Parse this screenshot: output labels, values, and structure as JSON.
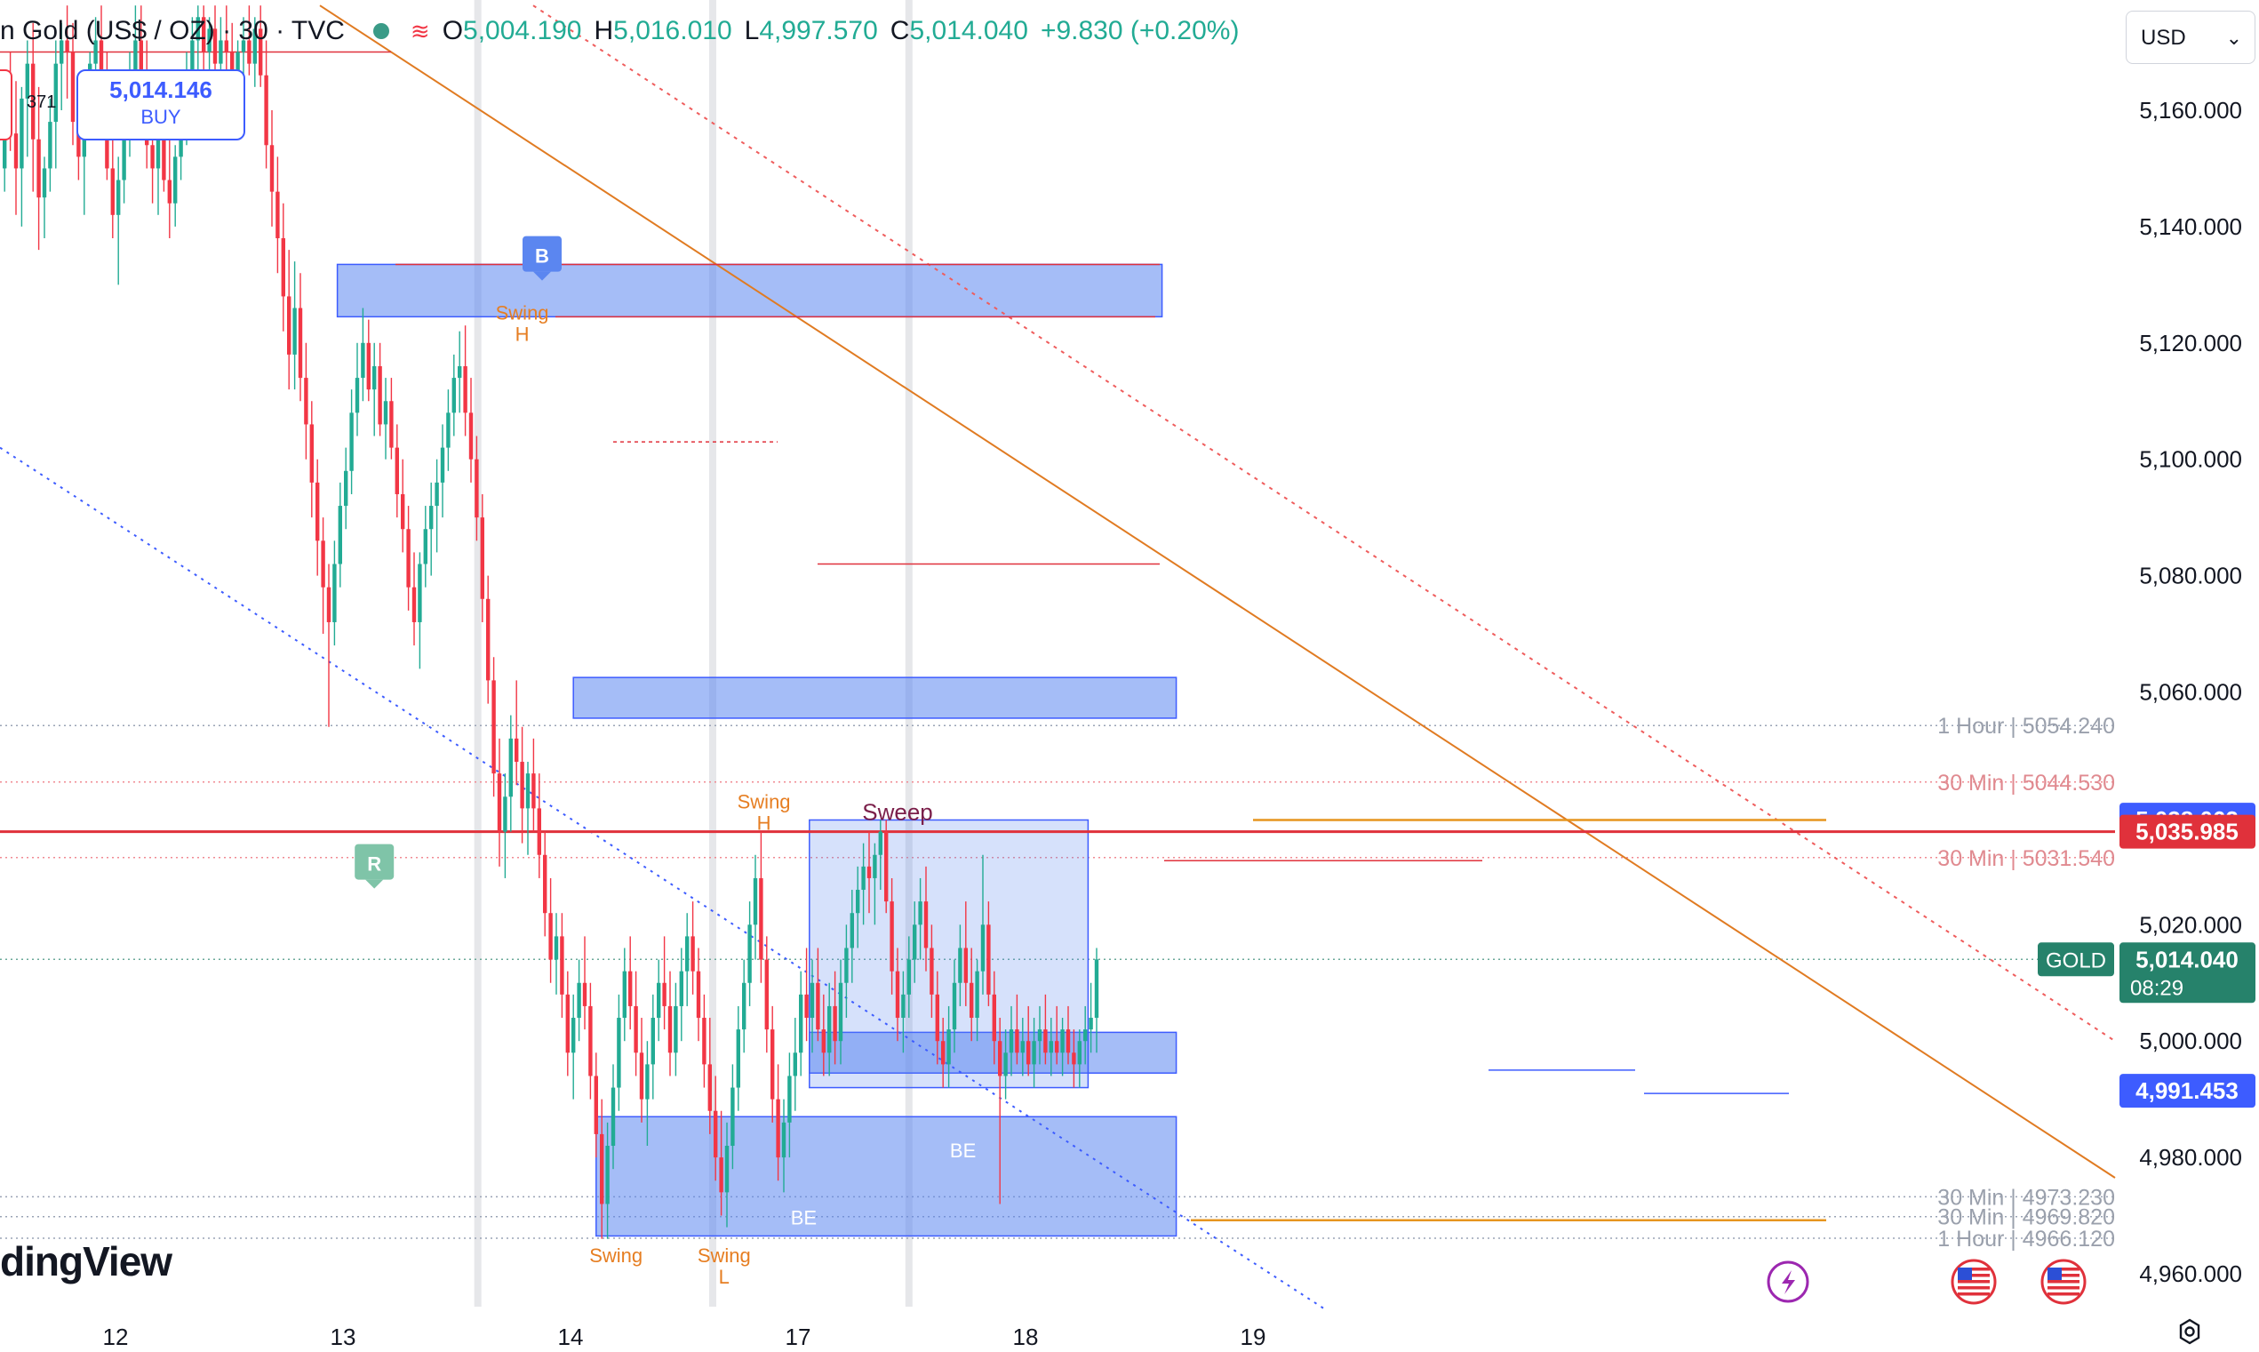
{
  "header": {
    "symbol": "n Gold (US$ / OZ) · 30 · TVC",
    "open_label": "O",
    "open": "5,004.190",
    "high_label": "H",
    "high": "5,016.010",
    "low_label": "L",
    "low": "4,997.570",
    "close_label": "C",
    "close": "5,014.040",
    "change": "+9.830 (+0.20%)"
  },
  "trade": {
    "buy_price": "5,014.146",
    "buy_label": "BUY",
    "spread": "371"
  },
  "currency_button": {
    "label": "USD"
  },
  "branding": {
    "logo_text": "dingView"
  },
  "colors": {
    "bullish": "#22ab94",
    "bearish": "#f23645",
    "zone_fill": "#5b86f0",
    "orange": "#e67e22",
    "blue_label": "#3d5cff",
    "gold_label": "#26826b"
  },
  "chart_data": {
    "type": "candlestick",
    "instrument": "Gold (US$ / OZ)",
    "timeframe": "30",
    "ylim": [
      4952,
      5178
    ],
    "y_ticks": [
      5160,
      5140,
      5120,
      5100,
      5080,
      5060,
      5020,
      5000,
      4980,
      4960
    ],
    "y_tick_labels": [
      "5,160.000",
      "5,140.000",
      "5,120.000",
      "5,100.000",
      "5,080.000",
      "5,060.000",
      "5,020.000",
      "5,000.000",
      "4,980.000",
      "4,960.000"
    ],
    "x_ticks": [
      {
        "label": "12",
        "bar": 20
      },
      {
        "label": "13",
        "bar": 60
      },
      {
        "label": "14",
        "bar": 100
      },
      {
        "label": "17",
        "bar": 140
      },
      {
        "label": "18",
        "bar": 180
      },
      {
        "label": "19",
        "bar": 220
      }
    ],
    "session_breaks": [
      83.7,
      125,
      159.5
    ],
    "price_labels": [
      {
        "text": "5,038.062",
        "value": 5038.062,
        "color": "#3d5cff"
      },
      {
        "text": "5,035.985",
        "value": 5035.985,
        "color": "#e0313b"
      },
      {
        "text": "5,014.040",
        "sub": "08:29",
        "value": 5014.04,
        "color": "#26826b",
        "tag": "GOLD"
      },
      {
        "text": "4,991.453",
        "value": 4991.453,
        "color": "#3d5cff"
      }
    ],
    "level_labels": [
      {
        "text": "1 Hour | 5054.240",
        "value": 5054.24
      },
      {
        "text": "30 Min | 5044.530",
        "value": 5044.53
      },
      {
        "text": "30 Min | 5031.540",
        "value": 5031.54
      },
      {
        "text": "30 Min | 4973.230",
        "value": 4973.23
      },
      {
        "text": "30 Min | 4969.820",
        "value": 4969.82
      },
      {
        "text": "1 Hour | 4966.120",
        "value": 4966.12
      }
    ],
    "zones": [
      {
        "x0": 59,
        "x1": 204,
        "y_top": 5133.5,
        "y_bottom": 5124.5,
        "alpha": 0.55
      },
      {
        "x0": 100.5,
        "x1": 206.5,
        "y_top": 5062.5,
        "y_bottom": 5055.5,
        "alpha": 0.55
      },
      {
        "x0": 142,
        "x1": 206.5,
        "y_top": 5001.5,
        "y_bottom": 4994.5,
        "alpha": 0.55
      },
      {
        "x0": 104.5,
        "x1": 206.5,
        "y_top": 4987,
        "y_bottom": 4966.5,
        "alpha": 0.55
      },
      {
        "x0": 142,
        "x1": 191,
        "y_top": 5038,
        "y_bottom": 4992,
        "alpha": 0.25
      }
    ],
    "markers": [
      {
        "text": "Swing",
        "sub": "H",
        "bar": 91.5,
        "value": 5124,
        "color": "#e67e22"
      },
      {
        "text": "Swing",
        "sub": "H",
        "bar": 134,
        "value": 5040,
        "color": "#e67e22"
      },
      {
        "text": "Sweep",
        "bar": 157.5,
        "value": 5038,
        "color": "#7b1f4a"
      },
      {
        "text": "Swing",
        "bar": 108,
        "value": 4962,
        "color": "#e67e22"
      },
      {
        "text": "Swing",
        "sub": "L",
        "bar": 127,
        "value": 4962,
        "color": "#e67e22"
      },
      {
        "text": "BE",
        "bar": 141,
        "value": 4968.5,
        "color": "#ffffff"
      },
      {
        "text": "BE",
        "bar": 169,
        "value": 4980,
        "color": "#ffffff"
      }
    ],
    "badges": [
      {
        "text": "B",
        "bar": 95,
        "value": 5135,
        "color": "#5b86f0"
      },
      {
        "text": "R",
        "bar": 65.5,
        "value": 5030.5,
        "color": "#7fc4a8"
      }
    ],
    "candles": [
      [
        5150.0,
        5165.0,
        5146.0,
        5160.0
      ],
      [
        5160.0,
        5170.0,
        5153.0,
        5156.0
      ],
      [
        5156.0,
        5165.0,
        5142.0,
        5150.0
      ],
      [
        5150.0,
        5164.0,
        5140.0,
        5162.0
      ],
      [
        5162.0,
        5172.0,
        5152.0,
        5168.0
      ],
      [
        5168.0,
        5175.0,
        5146.0,
        5155.0
      ],
      [
        5155.0,
        5164.0,
        5136.0,
        5145.0
      ],
      [
        5145.0,
        5152.0,
        5138.0,
        5150.0
      ],
      [
        5150.0,
        5162.0,
        5146.0,
        5158.0
      ],
      [
        5158.0,
        5172.0,
        5150.0,
        5168.0
      ],
      [
        5168.0,
        5175.0,
        5160.0,
        5172.0
      ],
      [
        5172.0,
        5178.0,
        5162.0,
        5170.0
      ],
      [
        5170.0,
        5175.0,
        5154.0,
        5158.0
      ],
      [
        5158.0,
        5165.0,
        5148.0,
        5152.0
      ],
      [
        5152.0,
        5162.0,
        5142.0,
        5160.0
      ],
      [
        5160.0,
        5170.0,
        5156.0,
        5168.0
      ],
      [
        5168.0,
        5176.0,
        5160.0,
        5172.0
      ],
      [
        5172.0,
        5178.0,
        5162.0,
        5164.0
      ],
      [
        5164.0,
        5170.0,
        5148.0,
        5150.0
      ],
      [
        5150.0,
        5155.0,
        5138.0,
        5142.0
      ],
      [
        5142.0,
        5152.0,
        5130.0,
        5148.0
      ],
      [
        5148.0,
        5160.0,
        5144.0,
        5156.0
      ],
      [
        5156.0,
        5170.0,
        5152.0,
        5166.0
      ],
      [
        5166.0,
        5178.0,
        5160.0,
        5172.0
      ],
      [
        5172.0,
        5178.0,
        5162.0,
        5166.0
      ],
      [
        5166.0,
        5172.0,
        5150.0,
        5154.0
      ],
      [
        5154.0,
        5162.0,
        5144.0,
        5150.0
      ],
      [
        5150.0,
        5158.0,
        5142.0,
        5156.0
      ],
      [
        5156.0,
        5164.0,
        5146.0,
        5148.0
      ],
      [
        5148.0,
        5158.0,
        5138.0,
        5144.0
      ],
      [
        5144.0,
        5154.0,
        5140.0,
        5152.0
      ],
      [
        5152.0,
        5162.0,
        5148.0,
        5160.0
      ],
      [
        5160.0,
        5170.0,
        5154.0,
        5166.0
      ],
      [
        5166.0,
        5176.0,
        5158.0,
        5172.0
      ],
      [
        5172.0,
        5178.0,
        5164.0,
        5176.0
      ],
      [
        5176.0,
        5178.0,
        5166.0,
        5170.0
      ],
      [
        5170.0,
        5176.0,
        5162.0,
        5174.0
      ],
      [
        5174.0,
        5178.0,
        5166.0,
        5168.0
      ],
      [
        5168.0,
        5176.0,
        5160.0,
        5172.0
      ],
      [
        5172.0,
        5178.0,
        5162.0,
        5170.0
      ],
      [
        5170.0,
        5175.0,
        5160.0,
        5164.0
      ],
      [
        5164.0,
        5172.0,
        5158.0,
        5170.0
      ],
      [
        5170.0,
        5176.0,
        5164.0,
        5172.0
      ],
      [
        5172.0,
        5178.0,
        5166.0,
        5168.0
      ],
      [
        5168.0,
        5176.0,
        5164.0,
        5174.0
      ],
      [
        5174.0,
        5178.0,
        5164.0,
        5166.0
      ],
      [
        5166.0,
        5172.0,
        5150.0,
        5154.0
      ],
      [
        5154.0,
        5160.0,
        5140.0,
        5146.0
      ],
      [
        5146.0,
        5152.0,
        5132.0,
        5138.0
      ],
      [
        5138.0,
        5144.0,
        5122.0,
        5128.0
      ],
      [
        5128.0,
        5136.0,
        5112.0,
        5118.0
      ],
      [
        5118.0,
        5134.0,
        5112.0,
        5126.0
      ],
      [
        5126.0,
        5132.0,
        5110.0,
        5114.0
      ],
      [
        5114.0,
        5120.0,
        5100.0,
        5106.0
      ],
      [
        5106.0,
        5110.0,
        5090.0,
        5096.0
      ],
      [
        5096.0,
        5100.0,
        5080.0,
        5086.0
      ],
      [
        5086.0,
        5090.0,
        5070.0,
        5078.0
      ],
      [
        5078.0,
        5082.0,
        5054.0,
        5072.0
      ],
      [
        5072.0,
        5086.0,
        5068.0,
        5082.0
      ],
      [
        5082.0,
        5096.0,
        5078.0,
        5092.0
      ],
      [
        5092.0,
        5102.0,
        5088.0,
        5098.0
      ],
      [
        5098.0,
        5112.0,
        5094.0,
        5108.0
      ],
      [
        5108.0,
        5120.0,
        5104.0,
        5114.0
      ],
      [
        5114.0,
        5126.0,
        5110.0,
        5120.0
      ],
      [
        5120.0,
        5124.0,
        5110.0,
        5112.0
      ],
      [
        5112.0,
        5120.0,
        5104.0,
        5116.0
      ],
      [
        5116.0,
        5120.0,
        5104.0,
        5106.0
      ],
      [
        5106.0,
        5114.0,
        5100.0,
        5110.0
      ],
      [
        5110.0,
        5114.0,
        5100.0,
        5102.0
      ],
      [
        5102.0,
        5106.0,
        5090.0,
        5094.0
      ],
      [
        5094.0,
        5100.0,
        5084.0,
        5088.0
      ],
      [
        5088.0,
        5092.0,
        5074.0,
        5078.0
      ],
      [
        5078.0,
        5084.0,
        5068.0,
        5072.0
      ],
      [
        5072.0,
        5084.0,
        5064.0,
        5082.0
      ],
      [
        5082.0,
        5092.0,
        5078.0,
        5088.0
      ],
      [
        5088.0,
        5096.0,
        5080.0,
        5092.0
      ],
      [
        5092.0,
        5100.0,
        5084.0,
        5096.0
      ],
      [
        5096.0,
        5106.0,
        5090.0,
        5102.0
      ],
      [
        5102.0,
        5112.0,
        5098.0,
        5108.0
      ],
      [
        5108.0,
        5118.0,
        5104.0,
        5114.0
      ],
      [
        5114.0,
        5122.0,
        5108.0,
        5116.0
      ],
      [
        5116.0,
        5123.0,
        5104.0,
        5108.0
      ],
      [
        5108.0,
        5114.0,
        5096.0,
        5100.0
      ],
      [
        5100.0,
        5104.0,
        5086.0,
        5090.0
      ],
      [
        5090.0,
        5094.0,
        5072.0,
        5076.0
      ],
      [
        5076.0,
        5080.0,
        5058.0,
        5062.0
      ],
      [
        5062.0,
        5066.0,
        5042.0,
        5046.0
      ],
      [
        5046.0,
        5052.0,
        5030.0,
        5036.0
      ],
      [
        5036.0,
        5046.0,
        5028.0,
        5042.0
      ],
      [
        5042.0,
        5056.0,
        5036.0,
        5052.0
      ],
      [
        5052.0,
        5062.0,
        5044.0,
        5048.0
      ],
      [
        5048.0,
        5054.0,
        5034.0,
        5040.0
      ],
      [
        5040.0,
        5048.0,
        5032.0,
        5046.0
      ],
      [
        5046.0,
        5052.0,
        5036.0,
        5040.0
      ],
      [
        5040.0,
        5046.0,
        5028.0,
        5032.0
      ],
      [
        5032.0,
        5036.0,
        5018.0,
        5022.0
      ],
      [
        5022.0,
        5028.0,
        5010.0,
        5014.0
      ],
      [
        5014.0,
        5022.0,
        5008.0,
        5018.0
      ],
      [
        5018.0,
        5022.0,
        5004.0,
        5008.0
      ],
      [
        5008.0,
        5012.0,
        4994.0,
        4998.0
      ],
      [
        4998.0,
        5008.0,
        4990.0,
        5004.0
      ],
      [
        5004.0,
        5014.0,
        5000.0,
        5010.0
      ],
      [
        5010.0,
        5018.0,
        5002.0,
        5006.0
      ],
      [
        5006.0,
        5010.0,
        4990.0,
        4994.0
      ],
      [
        4994.0,
        4998.0,
        4980.0,
        4984.0
      ],
      [
        4984.0,
        4990.0,
        4966.0,
        4972.0
      ],
      [
        4972.0,
        4986.0,
        4966.0,
        4982.0
      ],
      [
        4982.0,
        4996.0,
        4978.0,
        4992.0
      ],
      [
        4992.0,
        5008.0,
        4988.0,
        5004.0
      ],
      [
        5004.0,
        5016.0,
        5000.0,
        5012.0
      ],
      [
        5012.0,
        5018.0,
        5002.0,
        5006.0
      ],
      [
        5006.0,
        5012.0,
        4994.0,
        4998.0
      ],
      [
        4998.0,
        5004.0,
        4986.0,
        4990.0
      ],
      [
        4990.0,
        5000.0,
        4982.0,
        4996.0
      ],
      [
        4996.0,
        5008.0,
        4990.0,
        5004.0
      ],
      [
        5004.0,
        5014.0,
        5000.0,
        5010.0
      ],
      [
        5010.0,
        5018.0,
        5002.0,
        5006.0
      ],
      [
        5006.0,
        5012.0,
        4994.0,
        4998.0
      ],
      [
        4998.0,
        5010.0,
        4994.0,
        5006.0
      ],
      [
        5006.0,
        5016.0,
        5000.0,
        5012.0
      ],
      [
        5012.0,
        5022.0,
        5006.0,
        5018.0
      ],
      [
        5018.0,
        5024.0,
        5008.0,
        5012.0
      ],
      [
        5012.0,
        5016.0,
        5000.0,
        5004.0
      ],
      [
        5004.0,
        5008.0,
        4992.0,
        4996.0
      ],
      [
        4996.0,
        5004.0,
        4984.0,
        4988.0
      ],
      [
        4988.0,
        4994.0,
        4976.0,
        4980.0
      ],
      [
        4980.0,
        4988.0,
        4970.0,
        4974.0
      ],
      [
        4974.0,
        4986.0,
        4968.0,
        4982.0
      ],
      [
        4982.0,
        4996.0,
        4978.0,
        4992.0
      ],
      [
        4992.0,
        5006.0,
        4988.0,
        5002.0
      ],
      [
        5002.0,
        5014.0,
        4998.0,
        5010.0
      ],
      [
        5010.0,
        5024.0,
        5006.0,
        5020.0
      ],
      [
        5020.0,
        5032.0,
        5014.0,
        5028.0
      ],
      [
        5028.0,
        5036.0,
        5010.0,
        5014.0
      ],
      [
        5014.0,
        5018.0,
        4998.0,
        5002.0
      ],
      [
        5002.0,
        5006.0,
        4986.0,
        4990.0
      ],
      [
        4990.0,
        4996.0,
        4976.0,
        4980.0
      ],
      [
        4980.0,
        4990.0,
        4974.0,
        4986.0
      ],
      [
        4986.0,
        4998.0,
        4980.0,
        4994.0
      ],
      [
        4994.0,
        5004.0,
        4988.0,
        4998.0
      ],
      [
        4998.0,
        5012.0,
        4994.0,
        5008.0
      ],
      [
        5008.0,
        5016.0,
        5000.0,
        5004.0
      ],
      [
        5004.0,
        5014.0,
        4998.0,
        5010.0
      ],
      [
        5010.0,
        5016.0,
        5000.0,
        5002.0
      ],
      [
        5002.0,
        5008.0,
        4994.0,
        4998.0
      ],
      [
        4998.0,
        5010.0,
        4994.0,
        5006.0
      ],
      [
        5006.0,
        5012.0,
        4996.0,
        5000.0
      ],
      [
        5000.0,
        5014.0,
        4996.0,
        5010.0
      ],
      [
        5010.0,
        5020.0,
        5004.0,
        5016.0
      ],
      [
        5016.0,
        5026.0,
        5010.0,
        5022.0
      ],
      [
        5022.0,
        5030.0,
        5016.0,
        5026.0
      ],
      [
        5026.0,
        5034.0,
        5020.0,
        5030.0
      ],
      [
        5030.0,
        5036.0,
        5022.0,
        5028.0
      ],
      [
        5028.0,
        5034.0,
        5020.0,
        5032.0
      ],
      [
        5032.0,
        5038.0,
        5026.0,
        5036.0
      ],
      [
        5036.0,
        5038.0,
        5022.0,
        5024.0
      ],
      [
        5024.0,
        5028.0,
        5008.0,
        5012.0
      ],
      [
        5012.0,
        5016.0,
        5000.0,
        5004.0
      ],
      [
        5004.0,
        5012.0,
        4998.0,
        5008.0
      ],
      [
        5008.0,
        5018.0,
        5004.0,
        5014.0
      ],
      [
        5014.0,
        5024.0,
        5010.0,
        5020.0
      ],
      [
        5020.0,
        5028.0,
        5014.0,
        5024.0
      ],
      [
        5024.0,
        5030.0,
        5012.0,
        5016.0
      ],
      [
        5016.0,
        5020.0,
        5004.0,
        5008.0
      ],
      [
        5008.0,
        5012.0,
        4996.0,
        5000.0
      ],
      [
        5000.0,
        5004.0,
        4992.0,
        4996.0
      ],
      [
        4996.0,
        5006.0,
        4992.0,
        5002.0
      ],
      [
        5002.0,
        5014.0,
        4998.0,
        5010.0
      ],
      [
        5010.0,
        5020.0,
        5006.0,
        5016.0
      ],
      [
        5016.0,
        5024.0,
        5006.0,
        5010.0
      ],
      [
        5010.0,
        5016.0,
        5000.0,
        5004.0
      ],
      [
        5004.0,
        5014.0,
        5000.0,
        5012.0
      ],
      [
        5012.0,
        5032.0,
        5008.0,
        5020.0
      ],
      [
        5020.0,
        5024.0,
        5006.0,
        5008.0
      ],
      [
        5008.0,
        5012.0,
        4996.0,
        5000.0
      ],
      [
        5000.0,
        5004.0,
        4972.0,
        4994.0
      ],
      [
        4994.0,
        5002.0,
        4990.0,
        4998.0
      ],
      [
        4998.0,
        5006.0,
        4994.0,
        5002.0
      ],
      [
        5002.0,
        5008.0,
        4996.0,
        4998.0
      ],
      [
        4998.0,
        5004.0,
        4994.0,
        5000.0
      ],
      [
        5000.0,
        5006.0,
        4994.0,
        4996.0
      ],
      [
        4996.0,
        5004.0,
        4992.0,
        5000.0
      ],
      [
        5000.0,
        5006.0,
        4996.0,
        5002.0
      ],
      [
        5002.0,
        5008.0,
        4996.0,
        4998.0
      ],
      [
        4998.0,
        5004.0,
        4994.0,
        5000.0
      ],
      [
        5000.0,
        5006.0,
        4996.0,
        4998.0
      ],
      [
        4998.0,
        5004.0,
        4994.0,
        5002.0
      ],
      [
        5002.0,
        5006.0,
        4996.0,
        4998.0
      ],
      [
        4998.0,
        5002.0,
        4992.0,
        4996.0
      ],
      [
        4996.0,
        5002.0,
        4992.0,
        5000.0
      ],
      [
        5000.0,
        5006.0,
        4996.0,
        5002.0
      ],
      [
        5002.0,
        5010.0,
        4998.0,
        5004.0
      ],
      [
        5004.0,
        5016.0,
        4998.0,
        5014.04
      ]
    ]
  }
}
